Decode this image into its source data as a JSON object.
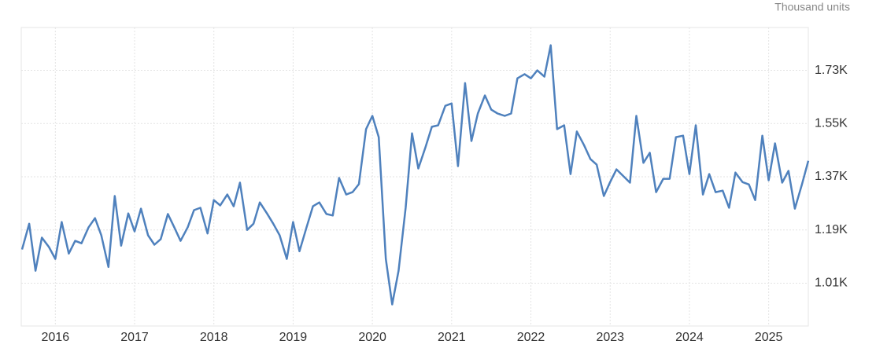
{
  "chart_data": {
    "type": "line",
    "unit_label": "Thousand units",
    "x": [
      2015.58,
      2015.67,
      2015.75,
      2015.83,
      2015.92,
      2016.0,
      2016.08,
      2016.17,
      2016.25,
      2016.33,
      2016.42,
      2016.5,
      2016.58,
      2016.67,
      2016.75,
      2016.83,
      2016.92,
      2017.0,
      2017.08,
      2017.17,
      2017.25,
      2017.33,
      2017.42,
      2017.5,
      2017.58,
      2017.67,
      2017.75,
      2017.83,
      2017.92,
      2018.0,
      2018.08,
      2018.17,
      2018.25,
      2018.33,
      2018.42,
      2018.5,
      2018.58,
      2018.67,
      2018.75,
      2018.83,
      2018.92,
      2019.0,
      2019.08,
      2019.17,
      2019.25,
      2019.33,
      2019.42,
      2019.5,
      2019.58,
      2019.67,
      2019.75,
      2019.83,
      2019.92,
      2020.0,
      2020.08,
      2020.17,
      2020.25,
      2020.33,
      2020.42,
      2020.5,
      2020.58,
      2020.67,
      2020.75,
      2020.83,
      2020.92,
      2021.0,
      2021.08,
      2021.17,
      2021.25,
      2021.33,
      2021.42,
      2021.5,
      2021.58,
      2021.67,
      2021.75,
      2021.83,
      2021.92,
      2022.0,
      2022.08,
      2022.17,
      2022.25,
      2022.33,
      2022.42,
      2022.5,
      2022.58,
      2022.67,
      2022.75,
      2022.83,
      2022.92,
      2023.0,
      2023.08,
      2023.17,
      2023.25,
      2023.33,
      2023.42,
      2023.5,
      2023.58,
      2023.67,
      2023.75,
      2023.83,
      2023.92,
      2024.0,
      2024.08,
      2024.17,
      2024.25,
      2024.33,
      2024.42,
      2024.5,
      2024.58,
      2024.67,
      2024.75,
      2024.83,
      2024.92,
      2025.0,
      2025.08,
      2025.17,
      2025.25,
      2025.33,
      2025.42,
      2025.5
    ],
    "series": [
      {
        "color": "#4f81bd",
        "values": [
          1.124,
          1.211,
          1.052,
          1.164,
          1.132,
          1.092,
          1.217,
          1.11,
          1.153,
          1.145,
          1.199,
          1.23,
          1.172,
          1.065,
          1.305,
          1.137,
          1.246,
          1.185,
          1.262,
          1.172,
          1.14,
          1.159,
          1.244,
          1.199,
          1.153,
          1.199,
          1.257,
          1.265,
          1.178,
          1.291,
          1.273,
          1.31,
          1.27,
          1.35,
          1.19,
          1.211,
          1.283,
          1.246,
          1.211,
          1.172,
          1.092,
          1.217,
          1.118,
          1.199,
          1.27,
          1.283,
          1.244,
          1.239,
          1.366,
          1.31,
          1.318,
          1.345,
          1.531,
          1.576,
          1.504,
          1.092,
          0.938,
          1.052,
          1.265,
          1.517,
          1.398,
          1.47,
          1.539,
          1.544,
          1.61,
          1.618,
          1.406,
          1.687,
          1.491,
          1.584,
          1.645,
          1.597,
          1.584,
          1.576,
          1.584,
          1.703,
          1.717,
          1.703,
          1.73,
          1.709,
          1.815,
          1.531,
          1.544,
          1.379,
          1.523,
          1.477,
          1.43,
          1.411,
          1.305,
          1.352,
          1.395,
          1.371,
          1.35,
          1.576,
          1.417,
          1.451,
          1.318,
          1.363,
          1.363,
          1.504,
          1.509,
          1.379,
          1.544,
          1.31,
          1.379,
          1.318,
          1.323,
          1.265,
          1.384,
          1.352,
          1.344,
          1.291,
          1.509,
          1.358,
          1.483,
          1.35,
          1.39,
          1.262,
          1.344,
          1.424
        ]
      }
    ],
    "xlim": [
      2015.57,
      2025.5
    ],
    "xticks": [
      2016,
      2017,
      2018,
      2019,
      2020,
      2021,
      2022,
      2023,
      2024,
      2025
    ],
    "ylim": [
      0.865,
      1.875
    ],
    "yticks": [
      {
        "value": 1.01,
        "label": "1.01K"
      },
      {
        "value": 1.19,
        "label": "1.19K"
      },
      {
        "value": 1.37,
        "label": "1.37K"
      },
      {
        "value": 1.55,
        "label": "1.55K"
      },
      {
        "value": 1.73,
        "label": "1.73K"
      }
    ],
    "grid": true
  }
}
